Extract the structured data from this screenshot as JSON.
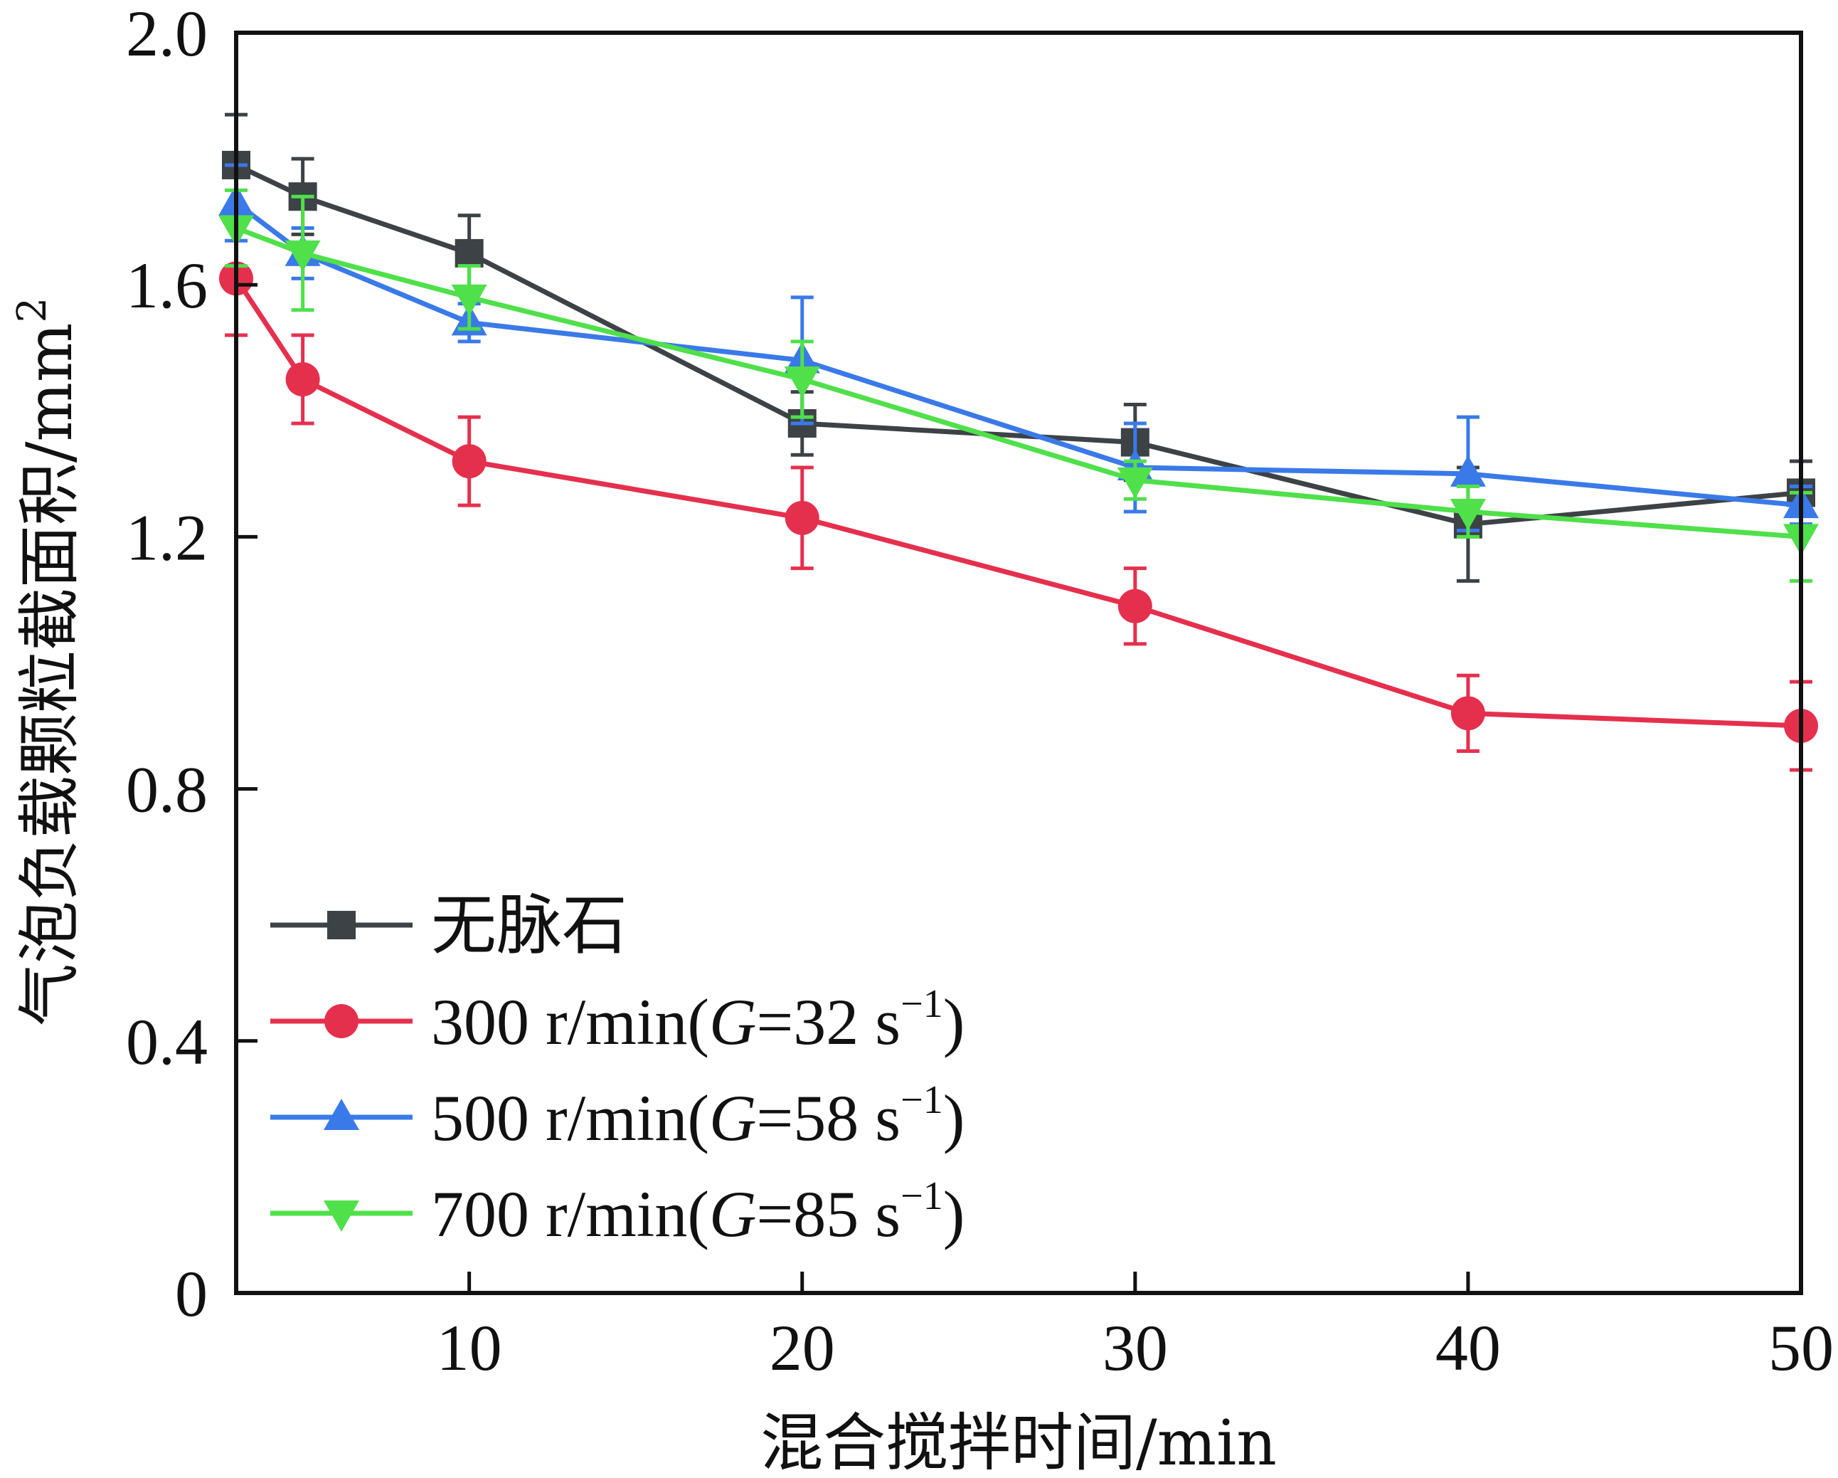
{
  "chart_data": {
    "type": "line",
    "xlabel": "混合搅拌时间/min",
    "ylabel_main": "气泡负载颗粒截面积/mm",
    "ylabel_sup": "2",
    "xlim": [
      3,
      50
    ],
    "ylim": [
      0,
      2.0
    ],
    "xticks": [
      10,
      20,
      30,
      40,
      50
    ],
    "yticks": [
      {
        "value": 0,
        "label": "0"
      },
      {
        "value": 0.4,
        "label": "0.4"
      },
      {
        "value": 0.8,
        "label": "0.8"
      },
      {
        "value": 1.2,
        "label": "1.2"
      },
      {
        "value": 1.6,
        "label": "1.6"
      },
      {
        "value": 2.0,
        "label": "2.0"
      }
    ],
    "legend_position": "lower-left",
    "series": [
      {
        "name": "无脉石",
        "legend_main": "无脉石",
        "legend_italic": "",
        "legend_rest": "",
        "legend_sup": "",
        "legend_close": "",
        "color": "#3d4246",
        "marker": "square",
        "x": [
          3,
          5,
          10,
          20,
          30,
          40,
          50
        ],
        "y": [
          1.79,
          1.74,
          1.65,
          1.38,
          1.35,
          1.22,
          1.27
        ],
        "err": [
          0.08,
          0.06,
          0.06,
          0.05,
          0.06,
          0.09,
          0.05
        ]
      },
      {
        "name": "300 r/min(G=32 s-1)",
        "legend_main": "300 r/min(",
        "legend_italic": "G",
        "legend_rest": "=32 s",
        "legend_sup": "−1",
        "legend_close": ")",
        "color": "#e5304d",
        "marker": "circle",
        "x": [
          3,
          5,
          10,
          20,
          30,
          40,
          50
        ],
        "y": [
          1.61,
          1.45,
          1.32,
          1.23,
          1.09,
          0.92,
          0.9
        ],
        "err": [
          0.09,
          0.07,
          0.07,
          0.08,
          0.06,
          0.06,
          0.07
        ]
      },
      {
        "name": "500 r/min(G=58 s-1)",
        "legend_main": "500 r/min(",
        "legend_italic": "G",
        "legend_rest": "=58 s",
        "legend_sup": "−1",
        "legend_close": ")",
        "color": "#3a7ae8",
        "marker": "triangle-up",
        "x": [
          3,
          5,
          10,
          20,
          30,
          40,
          50
        ],
        "y": [
          1.73,
          1.65,
          1.54,
          1.48,
          1.31,
          1.3,
          1.25
        ],
        "err": [
          0.06,
          0.04,
          0.03,
          0.1,
          0.07,
          0.09,
          0.03
        ]
      },
      {
        "name": "700 r/min(G=85 s-1)",
        "legend_main": "700 r/min(",
        "legend_italic": "G",
        "legend_rest": "=85 s",
        "legend_sup": "−1",
        "legend_close": ")",
        "color": "#4fe04a",
        "marker": "triangle-down",
        "x": [
          3,
          5,
          10,
          20,
          30,
          40,
          50
        ],
        "y": [
          1.69,
          1.65,
          1.58,
          1.45,
          1.29,
          1.24,
          1.2
        ],
        "err": [
          0.06,
          0.09,
          0.05,
          0.06,
          0.03,
          0.04,
          0.07
        ]
      }
    ]
  }
}
